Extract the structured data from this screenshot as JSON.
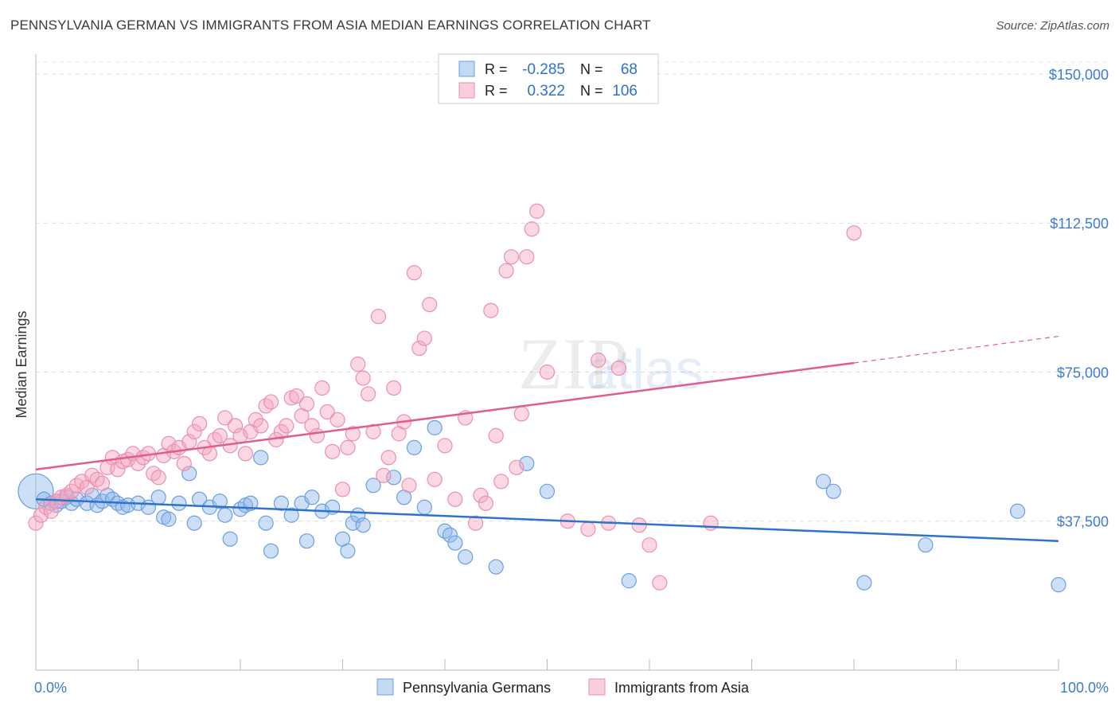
{
  "title": "PENNSYLVANIA GERMAN VS IMMIGRANTS FROM ASIA MEDIAN EARNINGS CORRELATION CHART",
  "source": "Source: ZipAtlas.com",
  "watermark": "ZIPatlas",
  "chart_data": {
    "type": "scatter",
    "ylabel": "Median Earnings",
    "xlabel": "",
    "x_tick_labels": [
      "0.0%",
      "100.0%"
    ],
    "y_tick_labels": [
      "$37,500",
      "$75,000",
      "$112,500",
      "$150,000"
    ],
    "y_ticks": [
      37500,
      75000,
      112500,
      150000
    ],
    "xlim": [
      0,
      100
    ],
    "ylim": [
      0,
      153000
    ],
    "grid": true,
    "legend_position": "top-center",
    "legend": [
      {
        "r_label": "R =",
        "r_value": "-0.285",
        "n_label": "N =",
        "n_value": "68"
      },
      {
        "r_label": "R =",
        "r_value": "0.322",
        "n_label": "N =",
        "n_value": "106"
      }
    ],
    "series": [
      {
        "name": "Pennsylvania Germans",
        "color": "#8fb8ea",
        "line_color": "#2f72c9",
        "trend": {
          "x0": 0,
          "y0": 43000,
          "x1": 100,
          "y1": 32500,
          "solid_to": 100
        },
        "points": [
          [
            0,
            45000
          ],
          [
            0.8,
            43000
          ],
          [
            1.5,
            42000
          ],
          [
            2,
            41500
          ],
          [
            2.5,
            42500
          ],
          [
            3,
            43500
          ],
          [
            3.5,
            42000
          ],
          [
            4,
            43000
          ],
          [
            5,
            42000
          ],
          [
            5.5,
            44000
          ],
          [
            6,
            41500
          ],
          [
            6.5,
            42500
          ],
          [
            7,
            44000
          ],
          [
            7.5,
            43000
          ],
          [
            8,
            42000
          ],
          [
            8.5,
            41000
          ],
          [
            9,
            41500
          ],
          [
            10,
            42000
          ],
          [
            11,
            41000
          ],
          [
            12,
            43500
          ],
          [
            12.5,
            38500
          ],
          [
            13,
            38000
          ],
          [
            14,
            42000
          ],
          [
            15,
            49500
          ],
          [
            15.5,
            37000
          ],
          [
            16,
            43000
          ],
          [
            17,
            41000
          ],
          [
            18,
            42500
          ],
          [
            18.5,
            39000
          ],
          [
            19,
            33000
          ],
          [
            20,
            40500
          ],
          [
            20.5,
            41500
          ],
          [
            21,
            42000
          ],
          [
            22,
            53500
          ],
          [
            22.5,
            37000
          ],
          [
            23,
            30000
          ],
          [
            24,
            42000
          ],
          [
            25,
            39000
          ],
          [
            26,
            42000
          ],
          [
            26.5,
            32500
          ],
          [
            27,
            43500
          ],
          [
            28,
            40000
          ],
          [
            29,
            41000
          ],
          [
            30,
            33000
          ],
          [
            30.5,
            30000
          ],
          [
            31,
            37000
          ],
          [
            31.5,
            39000
          ],
          [
            32,
            36500
          ],
          [
            33,
            46500
          ],
          [
            35,
            48500
          ],
          [
            36,
            43500
          ],
          [
            37,
            56000
          ],
          [
            38,
            41000
          ],
          [
            39,
            61000
          ],
          [
            40,
            35000
          ],
          [
            40.5,
            34000
          ],
          [
            41,
            32000
          ],
          [
            42,
            28500
          ],
          [
            45,
            26000
          ],
          [
            48,
            52000
          ],
          [
            50,
            45000
          ],
          [
            58,
            22500
          ],
          [
            77,
            47500
          ],
          [
            78,
            45000
          ],
          [
            81,
            22000
          ],
          [
            87,
            31500
          ],
          [
            96,
            40000
          ],
          [
            100,
            21500
          ]
        ]
      },
      {
        "name": "Immigrants from Asia",
        "color": "#f4a6c0",
        "line_color": "#e05d8c",
        "trend": {
          "x0": 0,
          "y0": 50500,
          "x1": 100,
          "y1": 84000,
          "solid_to": 80
        },
        "points": [
          [
            0,
            37000
          ],
          [
            0.5,
            39000
          ],
          [
            1,
            41000
          ],
          [
            1.5,
            40000
          ],
          [
            2,
            42500
          ],
          [
            2.5,
            43500
          ],
          [
            3,
            44000
          ],
          [
            3.5,
            45000
          ],
          [
            4,
            46500
          ],
          [
            4.5,
            47500
          ],
          [
            5,
            46000
          ],
          [
            5.5,
            49000
          ],
          [
            6,
            48000
          ],
          [
            6.5,
            47000
          ],
          [
            7,
            51000
          ],
          [
            7.5,
            53500
          ],
          [
            8,
            50500
          ],
          [
            8.5,
            52500
          ],
          [
            9,
            53000
          ],
          [
            9.5,
            54500
          ],
          [
            10,
            52000
          ],
          [
            10.5,
            53500
          ],
          [
            11,
            54500
          ],
          [
            11.5,
            49500
          ],
          [
            12,
            48500
          ],
          [
            12.5,
            54000
          ],
          [
            13,
            57000
          ],
          [
            13.5,
            55000
          ],
          [
            14,
            56000
          ],
          [
            14.5,
            52000
          ],
          [
            15,
            57500
          ],
          [
            15.5,
            60000
          ],
          [
            16,
            62000
          ],
          [
            16.5,
            56000
          ],
          [
            17,
            54500
          ],
          [
            17.5,
            58000
          ],
          [
            18,
            59000
          ],
          [
            18.5,
            63500
          ],
          [
            19,
            56500
          ],
          [
            19.5,
            61500
          ],
          [
            20,
            59000
          ],
          [
            20.5,
            54500
          ],
          [
            21,
            60000
          ],
          [
            21.5,
            63000
          ],
          [
            22,
            61500
          ],
          [
            22.5,
            66500
          ],
          [
            23,
            67500
          ],
          [
            23.5,
            58000
          ],
          [
            24,
            60000
          ],
          [
            24.5,
            61500
          ],
          [
            25,
            68500
          ],
          [
            25.5,
            69000
          ],
          [
            26,
            64000
          ],
          [
            26.5,
            67000
          ],
          [
            27,
            61500
          ],
          [
            27.5,
            59000
          ],
          [
            28,
            71000
          ],
          [
            28.5,
            65000
          ],
          [
            29,
            55000
          ],
          [
            29.5,
            63000
          ],
          [
            30,
            45500
          ],
          [
            30.5,
            56000
          ],
          [
            31,
            59500
          ],
          [
            31.5,
            77000
          ],
          [
            32,
            73500
          ],
          [
            32.5,
            69500
          ],
          [
            33,
            60000
          ],
          [
            33.5,
            89000
          ],
          [
            34,
            49000
          ],
          [
            34.5,
            53500
          ],
          [
            35,
            71000
          ],
          [
            35.5,
            59500
          ],
          [
            36,
            62500
          ],
          [
            36.5,
            46500
          ],
          [
            37,
            100000
          ],
          [
            37.5,
            81000
          ],
          [
            38,
            83500
          ],
          [
            38.5,
            92000
          ],
          [
            39,
            48000
          ],
          [
            40,
            56500
          ],
          [
            41,
            43000
          ],
          [
            42,
            63500
          ],
          [
            43,
            37000
          ],
          [
            43.5,
            44000
          ],
          [
            44,
            42000
          ],
          [
            44.5,
            90500
          ],
          [
            45,
            59000
          ],
          [
            45.5,
            47500
          ],
          [
            46,
            100500
          ],
          [
            46.5,
            104000
          ],
          [
            47,
            51000
          ],
          [
            47.5,
            64500
          ],
          [
            48,
            104000
          ],
          [
            48.5,
            111000
          ],
          [
            49,
            115500
          ],
          [
            50,
            75000
          ],
          [
            52,
            37500
          ],
          [
            54,
            35500
          ],
          [
            56,
            37000
          ],
          [
            59,
            36500
          ],
          [
            60,
            31500
          ],
          [
            61,
            22000
          ],
          [
            66,
            37000
          ],
          [
            80,
            110000
          ],
          [
            57,
            76000
          ],
          [
            55,
            78000
          ]
        ]
      }
    ]
  },
  "bottom_legend": [
    {
      "label": "Pennsylvania Germans",
      "color": "#8fb8ea"
    },
    {
      "label": "Immigrants from Asia",
      "color": "#f4a6c0"
    }
  ]
}
